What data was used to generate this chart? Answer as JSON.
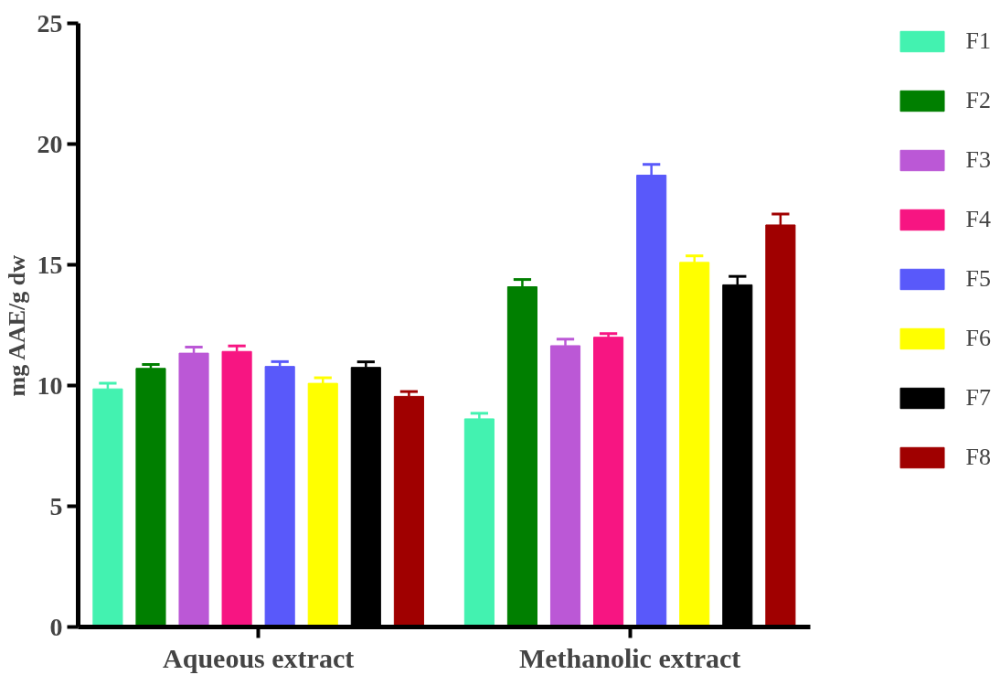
{
  "chart_data": {
    "type": "bar",
    "ylabel": "mg AAE/g dw",
    "categories": [
      "Aqueous extract",
      "Methanolic extract"
    ],
    "series": [
      {
        "name": "F1",
        "color": "#43f2b0",
        "values": [
          9.86,
          8.62
        ],
        "errors": [
          [
            9.86,
            10.09
          ],
          [
            8.62,
            8.85
          ]
        ]
      },
      {
        "name": "F2",
        "color": "#007f00",
        "values": [
          10.71,
          14.09
        ],
        "errors": [
          [
            10.71,
            10.87
          ],
          [
            14.09,
            14.39
          ]
        ]
      },
      {
        "name": "F3",
        "color": "#bb58d6",
        "values": [
          11.34,
          11.65
        ],
        "errors": [
          [
            11.34,
            11.59
          ],
          [
            11.65,
            11.92
          ]
        ]
      },
      {
        "name": "F4",
        "color": "#f71582",
        "values": [
          11.41,
          12.0
        ],
        "errors": [
          [
            11.41,
            11.64
          ],
          [
            12.0,
            12.15
          ]
        ]
      },
      {
        "name": "F5",
        "color": "#5959fa",
        "values": [
          10.79,
          18.71
        ],
        "errors": [
          [
            10.79,
            10.99
          ],
          [
            18.71,
            19.16
          ]
        ]
      },
      {
        "name": "F6",
        "color": "#ffff00",
        "values": [
          10.09,
          15.1
        ],
        "errors": [
          [
            10.09,
            10.32
          ],
          [
            15.1,
            15.37
          ]
        ]
      },
      {
        "name": "F7",
        "color": "#000000",
        "values": [
          10.75,
          14.17
        ],
        "errors": [
          [
            10.75,
            10.98
          ],
          [
            14.17,
            14.52
          ]
        ]
      },
      {
        "name": "F8",
        "color": "#a00000",
        "values": [
          9.55,
          16.65
        ],
        "errors": [
          [
            9.55,
            9.75
          ],
          [
            16.65,
            17.1
          ]
        ]
      }
    ],
    "ylim": [
      0,
      25
    ],
    "yticks": [
      0,
      5,
      10,
      15,
      20,
      25
    ],
    "grid": false,
    "legend": "right"
  }
}
